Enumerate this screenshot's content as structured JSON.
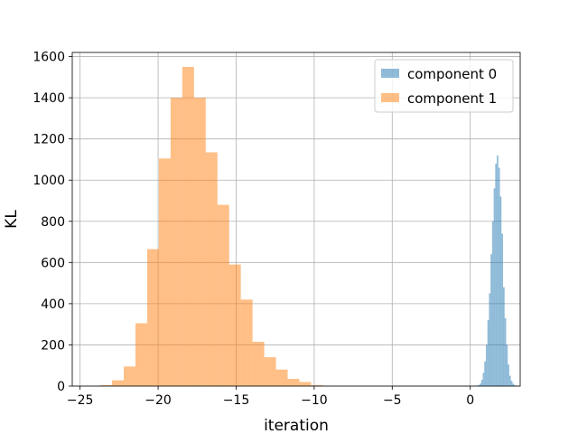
{
  "chart_data": {
    "type": "histogram",
    "xlabel": "iteration",
    "ylabel": "KL",
    "xlim": [
      -25.5,
      3.2
    ],
    "ylim": [
      0,
      1620
    ],
    "xticks": [
      -25,
      -20,
      -15,
      -10,
      -5,
      0
    ],
    "yticks": [
      0,
      200,
      400,
      600,
      800,
      1000,
      1200,
      1400,
      1600
    ],
    "grid": true,
    "legend_position": "top-right",
    "series": [
      {
        "name": "component 0",
        "color": "#1f77b4",
        "opacity": 0.5,
        "bin_start": 0.4,
        "bin_width": 0.1,
        "counts": [
          2,
          5,
          12,
          30,
          65,
          120,
          200,
          320,
          450,
          640,
          800,
          960,
          1080,
          1120,
          1060,
          920,
          740,
          480,
          330,
          200,
          105,
          50,
          25,
          12,
          5
        ]
      },
      {
        "name": "component 1",
        "color": "#ff7f0e",
        "opacity": 0.5,
        "bin_start": -23.7,
        "bin_width": 0.75,
        "counts": [
          5,
          28,
          95,
          305,
          665,
          1105,
          1400,
          1550,
          1400,
          1135,
          880,
          590,
          420,
          215,
          140,
          80,
          35,
          20,
          4,
          2
        ]
      }
    ]
  }
}
